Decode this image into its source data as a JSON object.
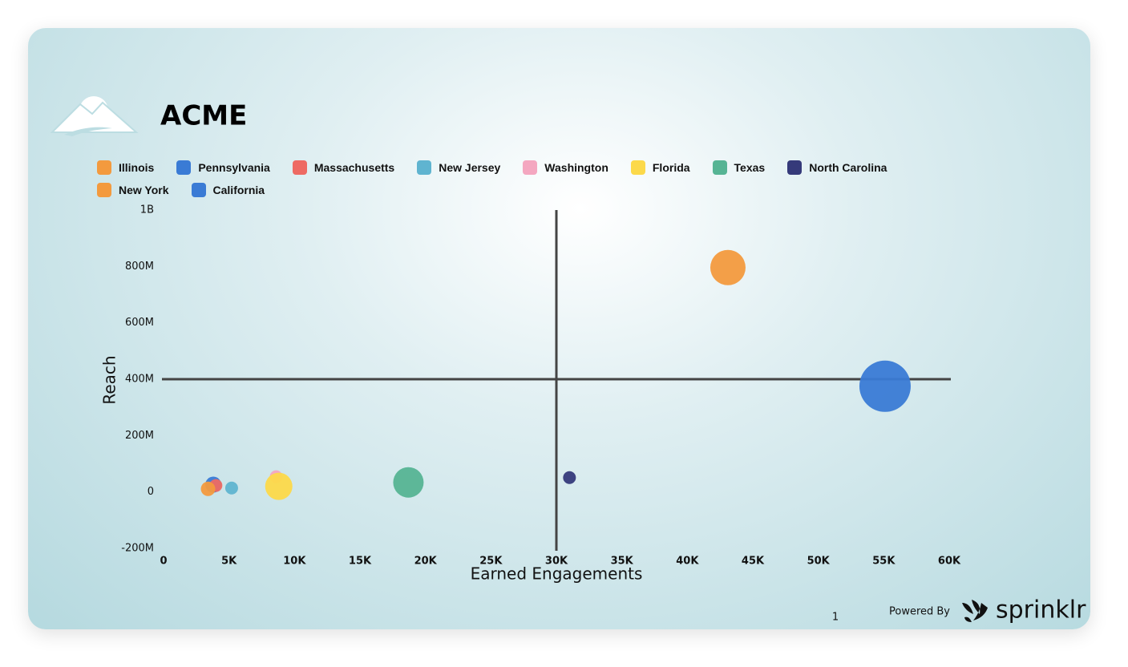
{
  "header": {
    "title": "ACME"
  },
  "chart_data": {
    "type": "bubble",
    "x_label": "Earned Engagements",
    "y_label": "Reach",
    "xlim": [
      0,
      60000
    ],
    "ylim": [
      -200000000,
      1000000000
    ],
    "xticks": [
      0,
      {
        "value": 5000,
        "label": "5K"
      },
      {
        "value": 10000,
        "label": "10K"
      },
      {
        "value": 15000,
        "label": "15K"
      },
      {
        "value": 20000,
        "label": "20K"
      },
      {
        "value": 25000,
        "label": "25K"
      },
      {
        "value": 30000,
        "label": "30K"
      },
      {
        "value": 35000,
        "label": "35K"
      },
      {
        "value": 40000,
        "label": "40K"
      },
      {
        "value": 45000,
        "label": "45K"
      },
      {
        "value": 50000,
        "label": "50K"
      },
      {
        "value": 55000,
        "label": "55K"
      },
      {
        "value": 60000,
        "label": "60K"
      }
    ],
    "yticks": [
      {
        "value": -200000000,
        "label": "-200M"
      },
      0,
      {
        "value": 200000000,
        "label": "200M"
      },
      {
        "value": 400000000,
        "label": "400M"
      },
      {
        "value": 600000000,
        "label": "600M"
      },
      {
        "value": 800000000,
        "label": "800M"
      },
      {
        "value": 1000000000,
        "label": "1B"
      }
    ],
    "quadrant_x": 30000,
    "quadrant_y": 400000000,
    "series": [
      {
        "name": "Illinois",
        "color": "#f39a3e",
        "x": [
          43100
        ],
        "values": [
          796000000
        ],
        "sizes": [
          484
        ]
      },
      {
        "name": "Pennsylvania",
        "color": "#3a7bd5",
        "x": [
          3800
        ],
        "values": [
          26000000
        ],
        "sizes": [
          100
        ]
      },
      {
        "name": "Massachusetts",
        "color": "#ee6a63",
        "x": [
          4000
        ],
        "values": [
          23000000
        ],
        "sizes": [
          64
        ]
      },
      {
        "name": "New Jersey",
        "color": "#5fb4d0",
        "x": [
          5200
        ],
        "values": [
          14000000
        ],
        "sizes": [
          64
        ]
      },
      {
        "name": "Washington",
        "color": "#f4a7c0",
        "x": [
          8600
        ],
        "values": [
          54000000
        ],
        "sizes": [
          64
        ]
      },
      {
        "name": "Florida",
        "color": "#fcd94a",
        "x": [
          8800
        ],
        "values": [
          20000000
        ],
        "sizes": [
          289
        ]
      },
      {
        "name": "Texas",
        "color": "#56b494",
        "x": [
          18700
        ],
        "values": [
          34000000
        ],
        "sizes": [
          361
        ]
      },
      {
        "name": "North Carolina",
        "color": "#353a7a",
        "x": [
          31000
        ],
        "values": [
          51000000
        ],
        "sizes": [
          64
        ]
      },
      {
        "name": "New York",
        "color": "#f39a3e",
        "x": [
          3400
        ],
        "values": [
          11000000
        ],
        "sizes": [
          81
        ]
      },
      {
        "name": "California",
        "color": "#3a7bd5",
        "x": [
          55100
        ],
        "values": [
          375000000
        ],
        "sizes": [
          1024
        ]
      }
    ]
  },
  "footer": {
    "page": "1",
    "powered_by": "Powered By",
    "brand": "sprinklr"
  }
}
